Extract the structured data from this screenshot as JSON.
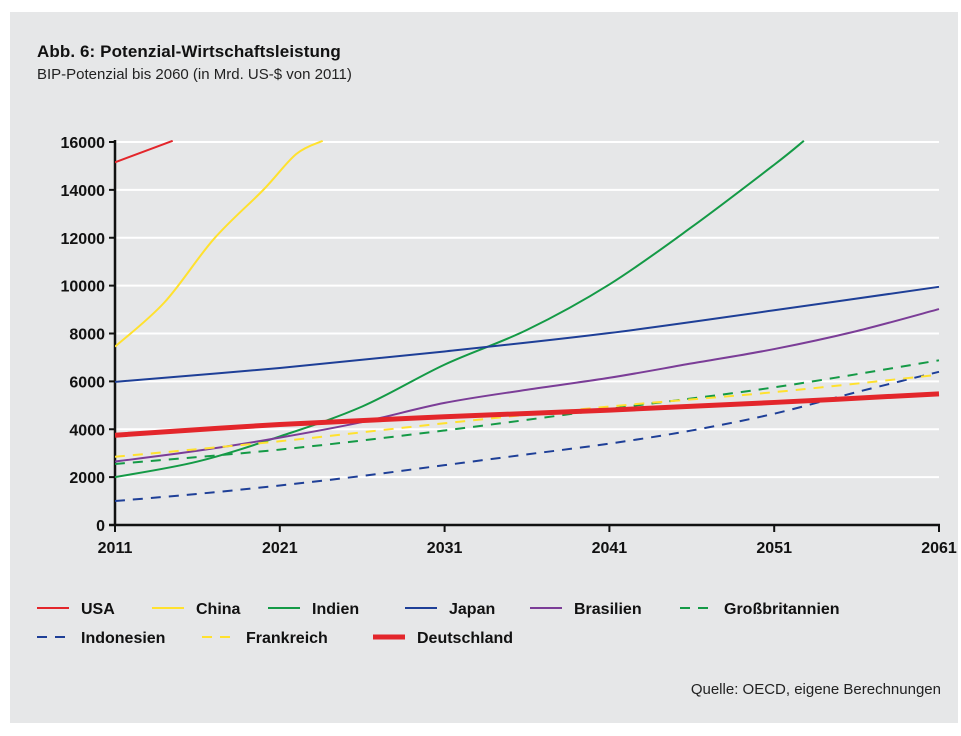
{
  "chart_data": {
    "type": "line",
    "title": "Abb. 6: Potenzial-Wirtschaftsleistung",
    "subtitle": "BIP-Potenzial bis 2060 (in Mrd. US-$ von 2011)",
    "source": "Quelle: OECD, eigene Berechnungen",
    "xlabel": "",
    "ylabel": "",
    "xlim": [
      2011,
      2061
    ],
    "ylim": [
      0,
      16000
    ],
    "x_ticks": [
      2011,
      2021,
      2031,
      2041,
      2051,
      2061
    ],
    "y_ticks": [
      0,
      2000,
      4000,
      6000,
      8000,
      10000,
      12000,
      14000,
      16000
    ],
    "grid": "horizontal",
    "legend_position": "bottom",
    "series": [
      {
        "name": "USA",
        "color": "#e3262b",
        "dash": "solid",
        "width": 2,
        "x": [
          2011,
          2014.5
        ],
        "y": [
          15150,
          16050
        ]
      },
      {
        "name": "China",
        "color": "#ffe12e",
        "dash": "solid",
        "width": 2,
        "x": [
          2011,
          2014,
          2017,
          2020,
          2022,
          2023.6
        ],
        "y": [
          7450,
          9300,
          11950,
          14000,
          15500,
          16050
        ]
      },
      {
        "name": "Indien",
        "color": "#149a46",
        "dash": "solid",
        "width": 2,
        "x": [
          2011,
          2016,
          2021,
          2026,
          2031,
          2036,
          2041,
          2046,
          2051,
          2052.8
        ],
        "y": [
          2000,
          2650,
          3700,
          4950,
          6700,
          8150,
          10050,
          12450,
          15050,
          16050
        ]
      },
      {
        "name": "Japan",
        "color": "#1e3f97",
        "dash": "solid",
        "width": 2,
        "x": [
          2011,
          2021,
          2031,
          2041,
          2051,
          2061
        ],
        "y": [
          5980,
          6560,
          7250,
          8020,
          8970,
          9950
        ]
      },
      {
        "name": "Brasilien",
        "color": "#7b3d97",
        "dash": "solid",
        "width": 2,
        "x": [
          2011,
          2016,
          2021,
          2026,
          2031,
          2036,
          2041,
          2046,
          2051,
          2056,
          2061
        ],
        "y": [
          2650,
          3100,
          3650,
          4300,
          5100,
          5650,
          6150,
          6750,
          7350,
          8100,
          9020
        ]
      },
      {
        "name": "Großbritannien",
        "color": "#149a46",
        "dash": "dashed",
        "width": 2,
        "x": [
          2011,
          2021,
          2031,
          2041,
          2051,
          2061
        ],
        "y": [
          2550,
          3150,
          3950,
          4850,
          5750,
          6880
        ]
      },
      {
        "name": "Indonesien",
        "color": "#1e3f97",
        "dash": "dashed",
        "width": 2,
        "x": [
          2011,
          2016,
          2021,
          2026,
          2031,
          2036,
          2041,
          2046,
          2051,
          2056,
          2061
        ],
        "y": [
          1000,
          1300,
          1650,
          2050,
          2500,
          2950,
          3400,
          3950,
          4650,
          5550,
          6400
        ]
      },
      {
        "name": "Frankreich",
        "color": "#ffe12e",
        "dash": "dashed",
        "width": 2,
        "x": [
          2011,
          2021,
          2031,
          2041,
          2051,
          2061
        ],
        "y": [
          2850,
          3500,
          4250,
          4950,
          5550,
          6280
        ]
      },
      {
        "name": "Deutschland",
        "color": "#e3262b",
        "dash": "solid",
        "width": 5,
        "x": [
          2011,
          2021,
          2031,
          2041,
          2051,
          2061
        ],
        "y": [
          3750,
          4200,
          4520,
          4800,
          5120,
          5480
        ]
      }
    ]
  }
}
